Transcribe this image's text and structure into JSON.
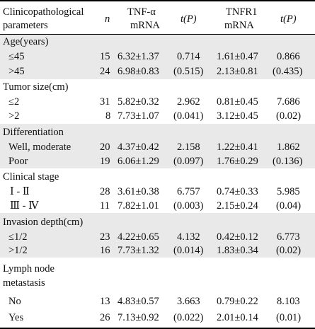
{
  "header": {
    "param_line1": "Clinicopathological",
    "param_line2": "parameters",
    "n": "n",
    "tnf_line1": "TNF-α",
    "tnf_line2": "mRNA",
    "tp1": "t(P)",
    "tnfr_line1": "TNFR1",
    "tnfr_line2": "mRNA",
    "tp2": "t(P)"
  },
  "groups": [
    {
      "title": "Age(years)",
      "rows": [
        {
          "label": "≤45",
          "n": "15",
          "tnf": "6.32±1.37",
          "t1": "0.714",
          "tnfr": "1.61±0.47",
          "t2": "0.866"
        },
        {
          "label": ">45",
          "n": "24",
          "tnf": "6.98±0.83",
          "t1": "(0.515)",
          "tnfr": "2.13±0.81",
          "t2": "(0.435)"
        }
      ]
    },
    {
      "title": "Tumor size(cm)",
      "rows": [
        {
          "label": "≤2",
          "n": "31",
          "tnf": "5.82±0.32",
          "t1": "2.962",
          "tnfr": "0.81±0.45",
          "t2": "7.686"
        },
        {
          "label": ">2",
          "n": "8",
          "tnf": "7.73±1.07",
          "t1": "(0.041)",
          "tnfr": "3.12±0.45",
          "t2": "(0.02)"
        }
      ]
    },
    {
      "title": "Differentiation",
      "rows": [
        {
          "label": "Well, moderate",
          "n": "20",
          "tnf": "4.37±0.42",
          "t1": "2.158",
          "tnfr": "1.22±0.41",
          "t2": "1.862"
        },
        {
          "label": "Poor",
          "n": "19",
          "tnf": "6.06±1.29",
          "t1": "(0.097)",
          "tnfr": "1.76±0.29",
          "t2": "(0.136)"
        }
      ]
    },
    {
      "title": "Clinical stage",
      "rows": [
        {
          "label": "Ⅰ - Ⅱ",
          "n": "28",
          "tnf": "3.61±0.38",
          "t1": "6.757",
          "tnfr": "0.74±0.33",
          "t2": "5.985"
        },
        {
          "label": "Ⅲ - Ⅳ",
          "n": "11",
          "tnf": "7.82±1.01",
          "t1": "(0.003)",
          "tnfr": "2.15±0.24",
          "t2": "(0.04)"
        }
      ]
    },
    {
      "title": "Invasion depth(cm)",
      "rows": [
        {
          "label": "≤1/2",
          "n": "23",
          "tnf": "4.22±0.65",
          "t1": "4.132",
          "tnfr": "0.42±0.12",
          "t2": "6.773"
        },
        {
          "label": ">1/2",
          "n": "16",
          "tnf": "7.73±1.32",
          "t1": "(0.014)",
          "tnfr": "1.83±0.34",
          "t2": "(0.02)"
        }
      ]
    },
    {
      "title": "Lymph node",
      "title2": "metastasis",
      "rows": [
        {
          "label": "No",
          "n": "13",
          "tnf": "4.83±0.57",
          "t1": "3.663",
          "tnfr": "0.79±0.22",
          "t2": "8.103"
        },
        {
          "label": "Yes",
          "n": "26",
          "tnf": "7.13±0.92",
          "t1": "(0.022)",
          "tnfr": "2.01±0.14",
          "t2": "(0.01)"
        }
      ]
    }
  ]
}
